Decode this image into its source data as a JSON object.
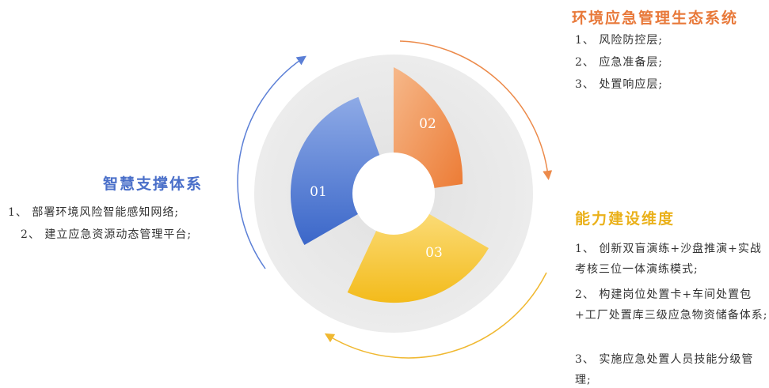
{
  "sectors": [
    "01",
    "02",
    "03"
  ],
  "sections": [
    {
      "title": "环境应急管理生态系统",
      "items": [
        "1、 风险防控层;",
        "2、 应急准备层;",
        "3、 处置响应层;"
      ]
    },
    {
      "title": "智慧支撑体系",
      "items": [
        "1、 部署环境风险智能感知网络;",
        "2、 建立应急资源动态管理平台;"
      ]
    },
    {
      "title": "能力建设维度",
      "items": [
        "1、 创新双盲演练+沙盘推演+实战考核三位一体演练模式;",
        "2、 构建岗位处置卡+车间处置包+工厂处置库三级应急物资储备体系;",
        "3、 实施应急处置人员技能分级管理;"
      ]
    }
  ]
}
